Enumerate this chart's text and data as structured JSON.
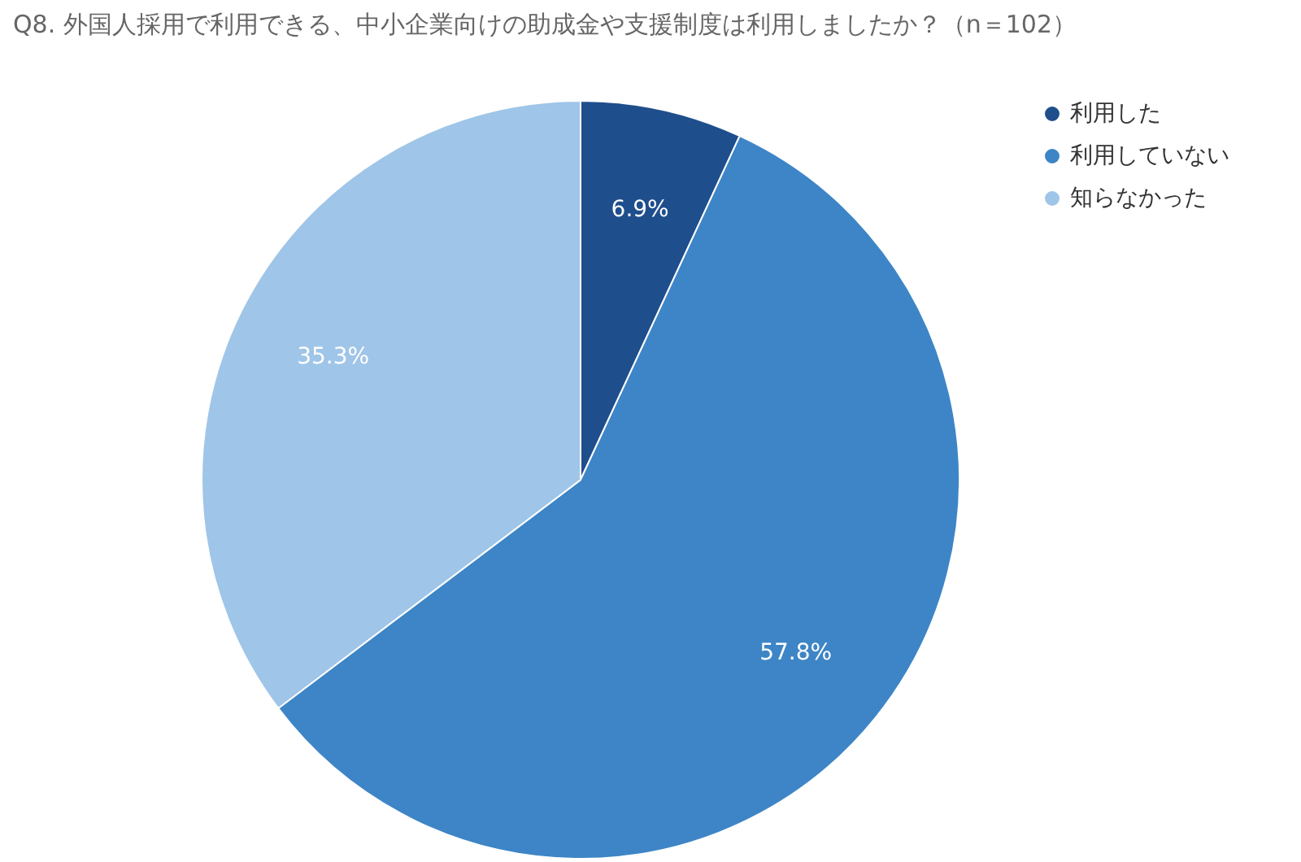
{
  "chart_data": {
    "type": "pie",
    "title": "Q8. 外国人採用で利用できる、中小企業向けの助成金や支援制度は利用しましたか？（n＝102）",
    "categories": [
      "利用した",
      "利用していない",
      "知らなかった"
    ],
    "values": [
      6.9,
      57.8,
      35.3
    ],
    "colors": [
      "#1f4e8c",
      "#3d85c6",
      "#9fc5e8"
    ],
    "value_labels": [
      "6.9%",
      "57.8%",
      "35.3%"
    ],
    "legend": "top right"
  }
}
